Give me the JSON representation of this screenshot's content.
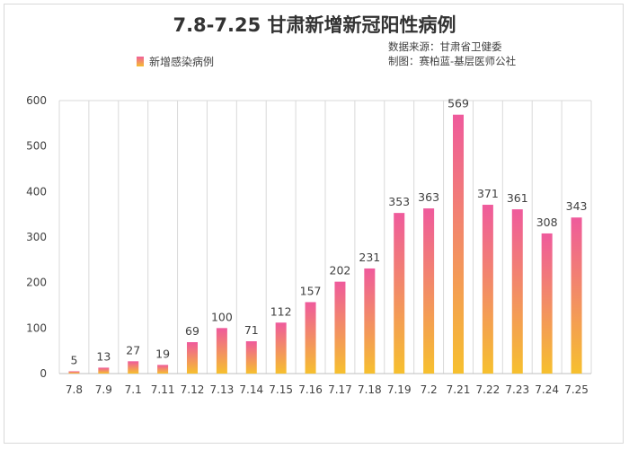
{
  "chart_data": {
    "type": "bar",
    "title": "7.8-7.25 甘肃新增新冠阳性病例",
    "source_lines": [
      "数据来源：甘肃省卫健委",
      "制图：赛柏蓝-基层医师公社"
    ],
    "legend": "新增感染病例",
    "categories": [
      "7.8",
      "7.9",
      "7.1",
      "7.11",
      "7.12",
      "7.13",
      "7.14",
      "7.15",
      "7.16",
      "7.17",
      "7.18",
      "7.19",
      "7.2",
      "7.21",
      "7.22",
      "7.23",
      "7.24",
      "7.25"
    ],
    "series": [
      {
        "name": "新增感染病例",
        "values": [
          5,
          13,
          27,
          19,
          69,
          100,
          71,
          112,
          157,
          202,
          231,
          353,
          363,
          569,
          371,
          361,
          308,
          343
        ]
      }
    ],
    "ylim": [
      0,
      600
    ],
    "yticks": [
      0,
      100,
      200,
      300,
      400,
      500,
      600
    ],
    "colors": {
      "bar_top": "#ef5a9c",
      "bar_bottom": "#f6c02e",
      "grid": "#d9d9d9",
      "axis": "#bfbfbf"
    }
  }
}
